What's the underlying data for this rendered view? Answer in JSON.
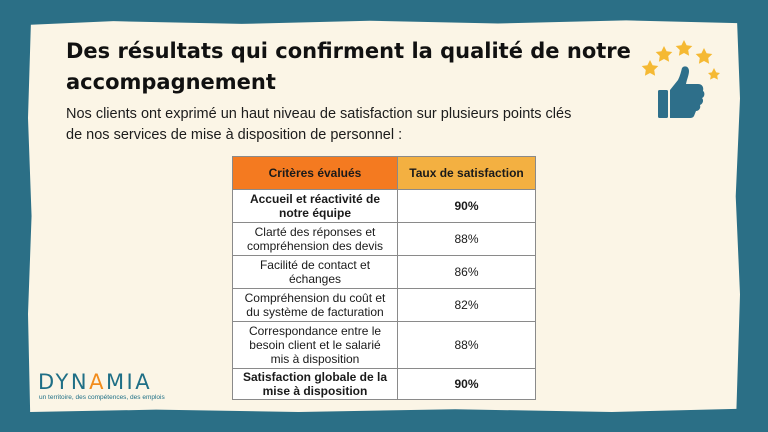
{
  "title": "Des résultats qui confirment la qualité de notre accompagnement",
  "intro": "Nos clients ont exprimé un haut niveau de satisfaction sur plusieurs points clés de nos services de mise à disposition de personnel :",
  "table": {
    "headers": [
      "Critères évalués",
      "Taux de satisfaction"
    ],
    "rows": [
      {
        "criterion": "Accueil et réactivité de notre équipe",
        "rate": "90%"
      },
      {
        "criterion": "Clarté des réponses et compréhension des devis",
        "rate": "88%"
      },
      {
        "criterion": "Facilité de contact et échanges",
        "rate": "86%"
      },
      {
        "criterion": "Compréhension du coût et du système de facturation",
        "rate": "82%"
      },
      {
        "criterion": "Correspondance entre le besoin client et le salarié mis à disposition",
        "rate": "88%"
      },
      {
        "criterion": "Satisfaction globale de la mise à disposition",
        "rate": "90%"
      }
    ]
  },
  "logo": {
    "name_part1": "DYN",
    "name_accent": "A",
    "name_part2": "MIA",
    "tagline": "un territoire, des compétences, des emplois"
  },
  "colors": {
    "background": "#2b6f86",
    "paper": "#fbf5e6",
    "header_left": "#f47a20",
    "header_right": "#f3b041",
    "brand": "#1f6f86",
    "brand_accent": "#f28c1c",
    "star": "#f5b933",
    "thumb": "#2e6f8a"
  },
  "icons": {
    "rating": "thumbs-up-stars-icon"
  }
}
